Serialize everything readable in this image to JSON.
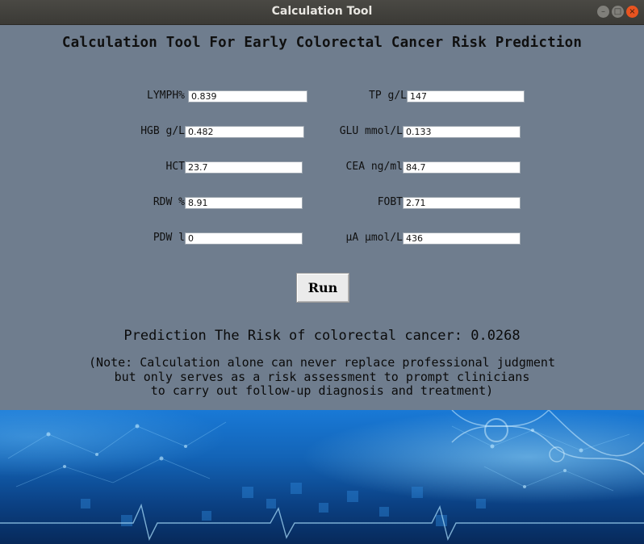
{
  "window": {
    "title": "Calculation Tool"
  },
  "app": {
    "heading": "Calculation Tool For Early Colorectal Cancer Risk Prediction"
  },
  "fields": {
    "lymph": {
      "label": "LYMPH%",
      "value": "0.839"
    },
    "hgb": {
      "label": "HGB g/L",
      "value": "0.482"
    },
    "hct": {
      "label": "HCT",
      "value": "23.7"
    },
    "rdw": {
      "label": "RDW %",
      "value": "8.91"
    },
    "pdw": {
      "label": "PDW l",
      "value": "0"
    },
    "tp": {
      "label": "TP g/L",
      "value": "147"
    },
    "glu": {
      "label": "GLU mmol/L",
      "value": "0.133"
    },
    "cea": {
      "label": "CEA ng/ml",
      "value": "84.7"
    },
    "fobt": {
      "label": "FOBT",
      "value": "2.71"
    },
    "ua": {
      "label": "μA μmol/L",
      "value": "436"
    }
  },
  "actions": {
    "run_label": "Run"
  },
  "result": {
    "text": "Prediction The Risk of colorectal cancer: 0.0268"
  },
  "note": {
    "line1": "(Note: Calculation alone can never replace professional judgment",
    "line2": "but only serves as a risk assessment to prompt clinicians",
    "line3": "to carry out follow-up diagnosis and treatment)"
  },
  "colors": {
    "panel_bg": "#6f7d8e",
    "banner_top": "#1979d6",
    "banner_bottom": "#07295a",
    "close_button": "#e95420"
  },
  "icons": {
    "minimize": "minimize-icon",
    "maximize": "maximize-icon",
    "close": "close-icon"
  }
}
